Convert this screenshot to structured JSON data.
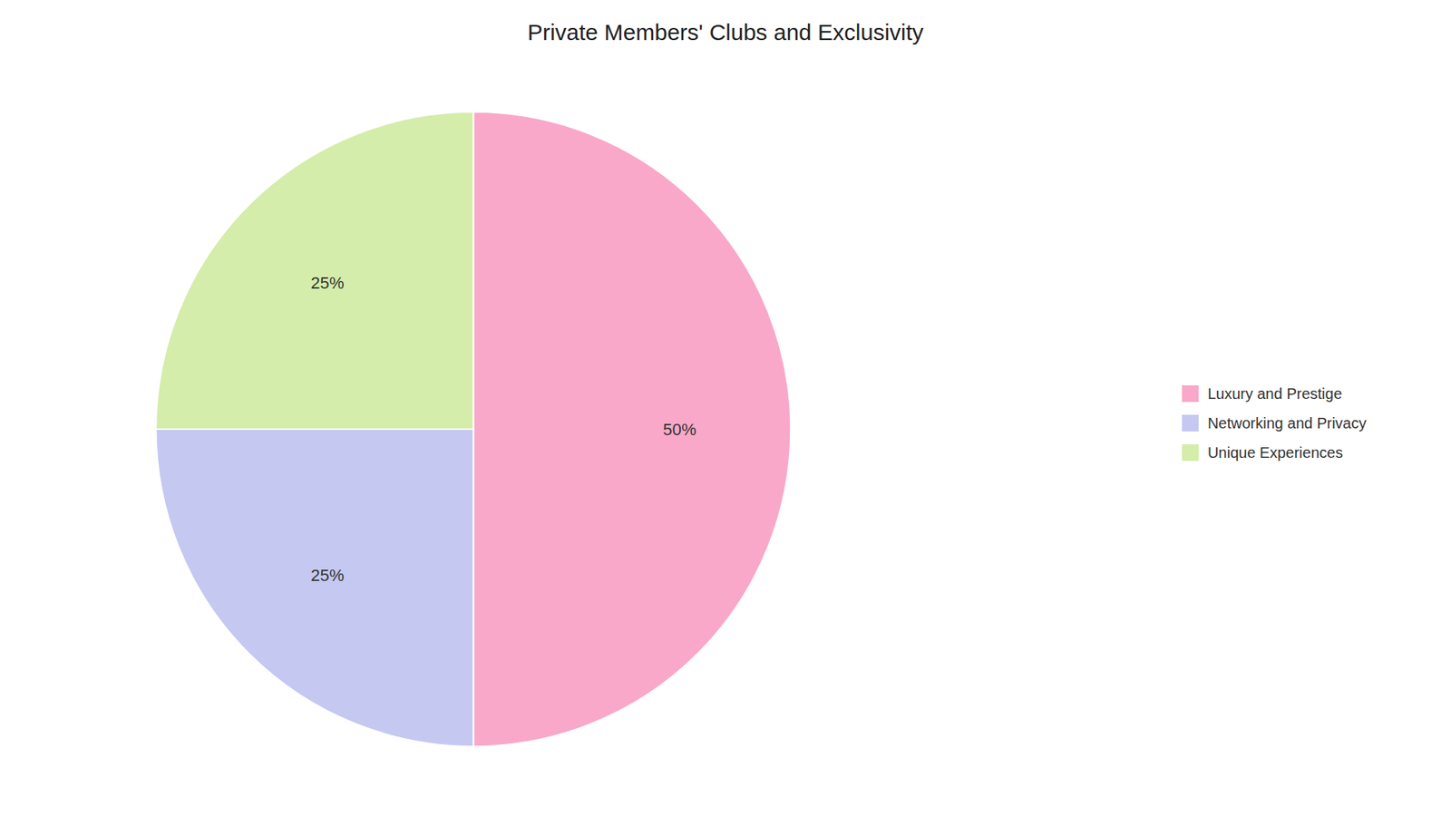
{
  "chart_data": {
    "type": "pie",
    "title": "Private Members' Clubs and Exclusivity",
    "categories": [
      "Luxury and Prestige",
      "Networking and Privacy",
      "Unique Experiences"
    ],
    "values": [
      50,
      25,
      25
    ],
    "value_labels": [
      "50%",
      "25%",
      "25%"
    ],
    "colors": [
      "#F9A8C9",
      "#C5C8F0",
      "#D4EDAA"
    ],
    "data_labels": true,
    "legend": "right"
  }
}
